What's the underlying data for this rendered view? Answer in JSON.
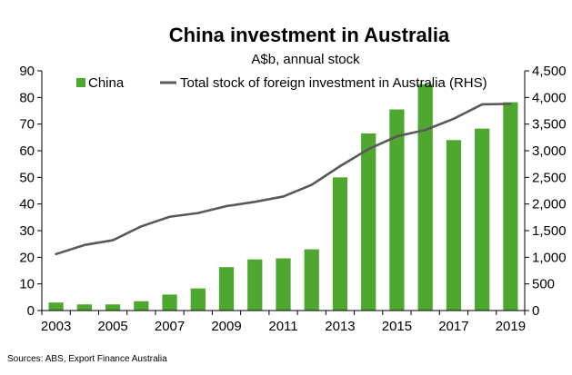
{
  "chart_data": {
    "type": "bar",
    "title": "China investment in Australia",
    "subtitle": "A$b, annual stock",
    "x": [
      2003,
      2004,
      2005,
      2006,
      2007,
      2008,
      2009,
      2010,
      2011,
      2012,
      2013,
      2014,
      2015,
      2016,
      2017,
      2018,
      2019
    ],
    "x_tick_labels": [
      "2003",
      "2005",
      "2007",
      "2009",
      "2011",
      "2013",
      "2015",
      "2017",
      "2019"
    ],
    "ylim": [
      0,
      90
    ],
    "y_tick_labels": [
      "0",
      "10",
      "20",
      "30",
      "40",
      "50",
      "60",
      "70",
      "80",
      "90"
    ],
    "y2lim": [
      0,
      4500
    ],
    "y2_tick_labels": [
      "0",
      "500",
      "1,000",
      "1,500",
      "2,000",
      "2,500",
      "3,000",
      "3,500",
      "4,000",
      "4,500"
    ],
    "grid": false,
    "legend_position": "top",
    "series": [
      {
        "name": "China",
        "type": "bar",
        "axis": "left",
        "color": "#4ea72e",
        "values": [
          3,
          2.3,
          2.3,
          3.5,
          6,
          8.3,
          16.3,
          19.2,
          19.6,
          23,
          50,
          66.5,
          75.5,
          85,
          64,
          68.3,
          78.2
        ]
      },
      {
        "name": "Total stock of foreign investment in Australia (RHS)",
        "type": "line",
        "axis": "right",
        "color": "#595959",
        "values": [
          1060,
          1230,
          1320,
          1580,
          1760,
          1830,
          1960,
          2040,
          2140,
          2360,
          2710,
          3030,
          3270,
          3390,
          3600,
          3870,
          3880
        ]
      }
    ]
  },
  "footer": {
    "source": "Sources: ABS, Export Finance Australia"
  }
}
